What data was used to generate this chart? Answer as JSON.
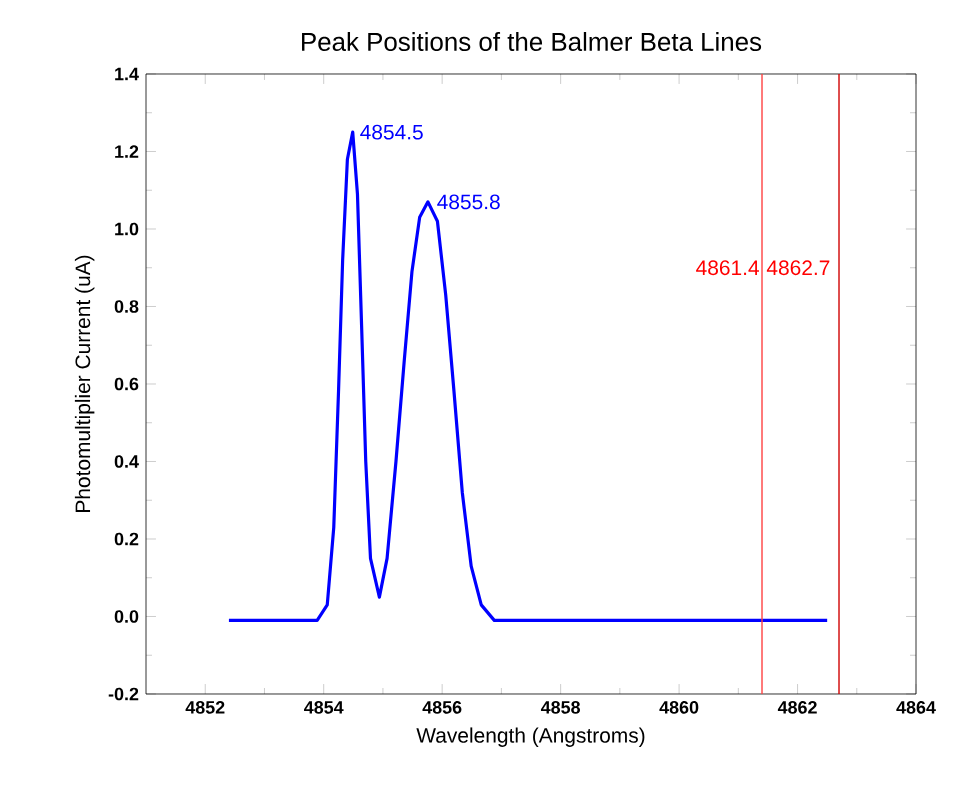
{
  "chart_data": {
    "type": "line",
    "title": "Peak Positions of the Balmer Beta Lines",
    "xlabel": "Wavelength (Angstroms)",
    "ylabel": "Photomultiplier Current (uA)",
    "xlim": [
      4851,
      4864
    ],
    "ylim": [
      -0.2,
      1.4
    ],
    "xticks": [
      4852,
      4854,
      4856,
      4858,
      4860,
      4862,
      4864
    ],
    "yticks": [
      -0.2,
      {
        "value": 0,
        "label": "0.0"
      },
      0.2,
      0.4,
      0.6,
      0.8,
      {
        "value": 1,
        "label": "1.0"
      },
      1.2,
      1.4
    ],
    "series": [
      {
        "color": "#0000ff",
        "x": [
          4852.4,
          4853.0,
          4853.5,
          4853.89,
          4854.06,
          4854.17,
          4854.25,
          4854.32,
          4854.4,
          4854.49,
          4854.57,
          4854.64,
          4854.71,
          4854.79,
          4854.94,
          4855.07,
          4855.22,
          4855.36,
          4855.49,
          4855.62,
          4855.76,
          4855.92,
          4856.06,
          4856.2,
          4856.34,
          4856.49,
          4856.66,
          4856.88,
          4858.0,
          4860.0,
          4862.5
        ],
        "values": [
          -0.01,
          -0.01,
          -0.01,
          -0.01,
          0.03,
          0.23,
          0.58,
          0.92,
          1.18,
          1.25,
          1.09,
          0.75,
          0.4,
          0.15,
          0.05,
          0.15,
          0.4,
          0.66,
          0.89,
          1.03,
          1.07,
          1.02,
          0.83,
          0.58,
          0.32,
          0.13,
          0.03,
          -0.01,
          -0.01,
          -0.01,
          -0.01
        ]
      }
    ],
    "ref_lines": [
      {
        "axis": "x",
        "value": 4861.4,
        "label": "4861.4",
        "color": "#ff4040"
      },
      {
        "axis": "x",
        "value": 4862.7,
        "label": "4862.7",
        "color": "#d00000"
      }
    ],
    "annotations": [
      {
        "text": "4854.5",
        "x": 4854.5,
        "y": 1.25
      },
      {
        "text": "4855.8",
        "x": 4855.8,
        "y": 1.07
      }
    ]
  }
}
